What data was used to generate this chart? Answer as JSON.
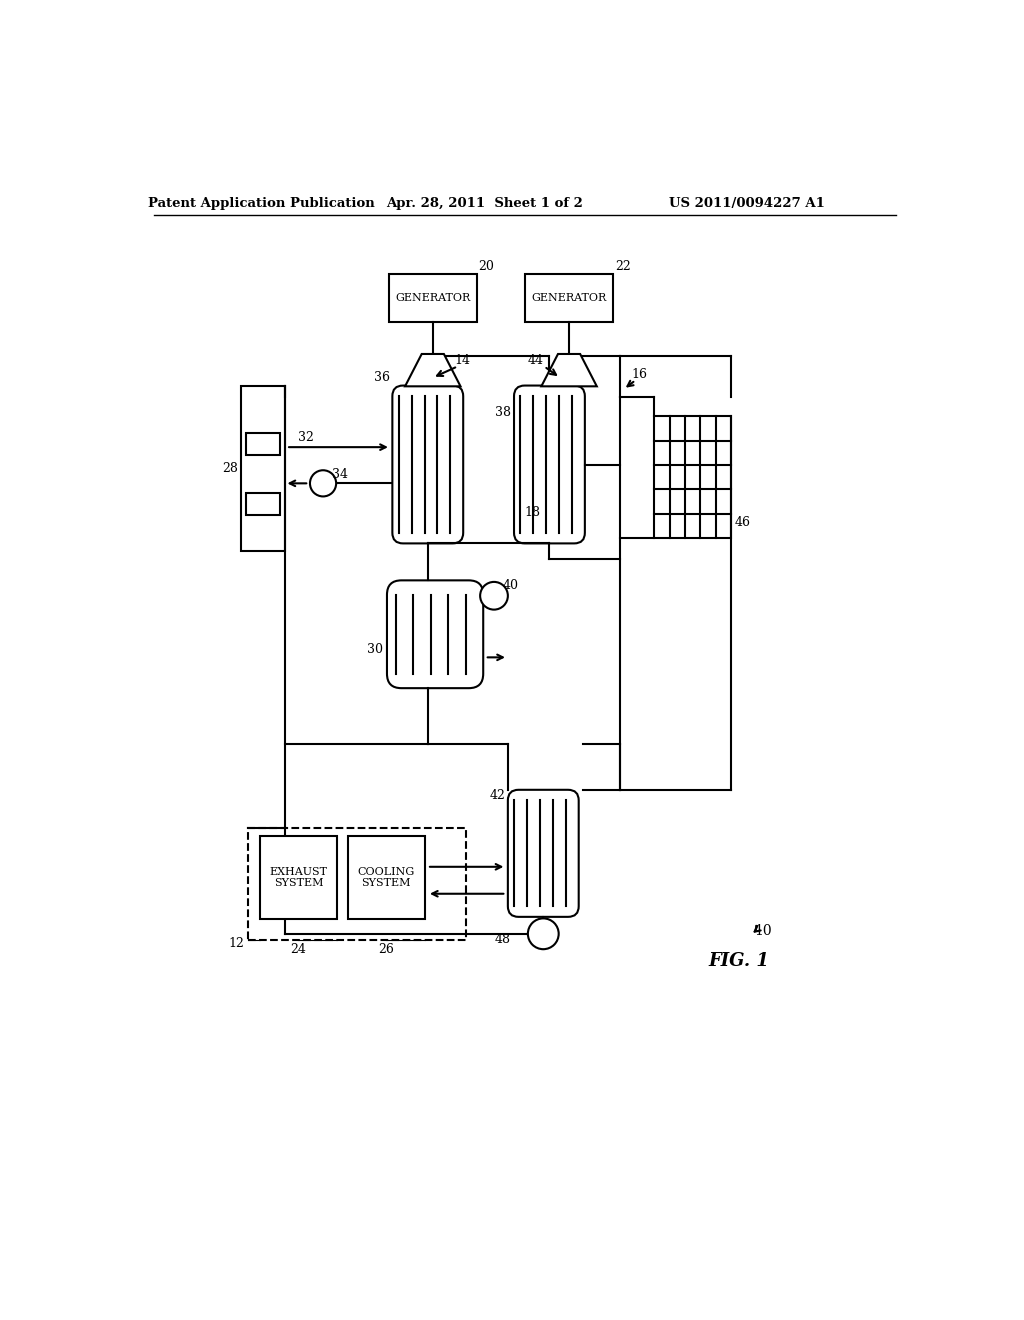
{
  "bg_color": "#ffffff",
  "line_color": "#000000",
  "header_left": "Patent Application Publication",
  "header_center": "Apr. 28, 2011  Sheet 1 of 2",
  "header_right": "US 2011/0094227 A1",
  "fig_label": "FIG. 1",
  "system_label": "10"
}
